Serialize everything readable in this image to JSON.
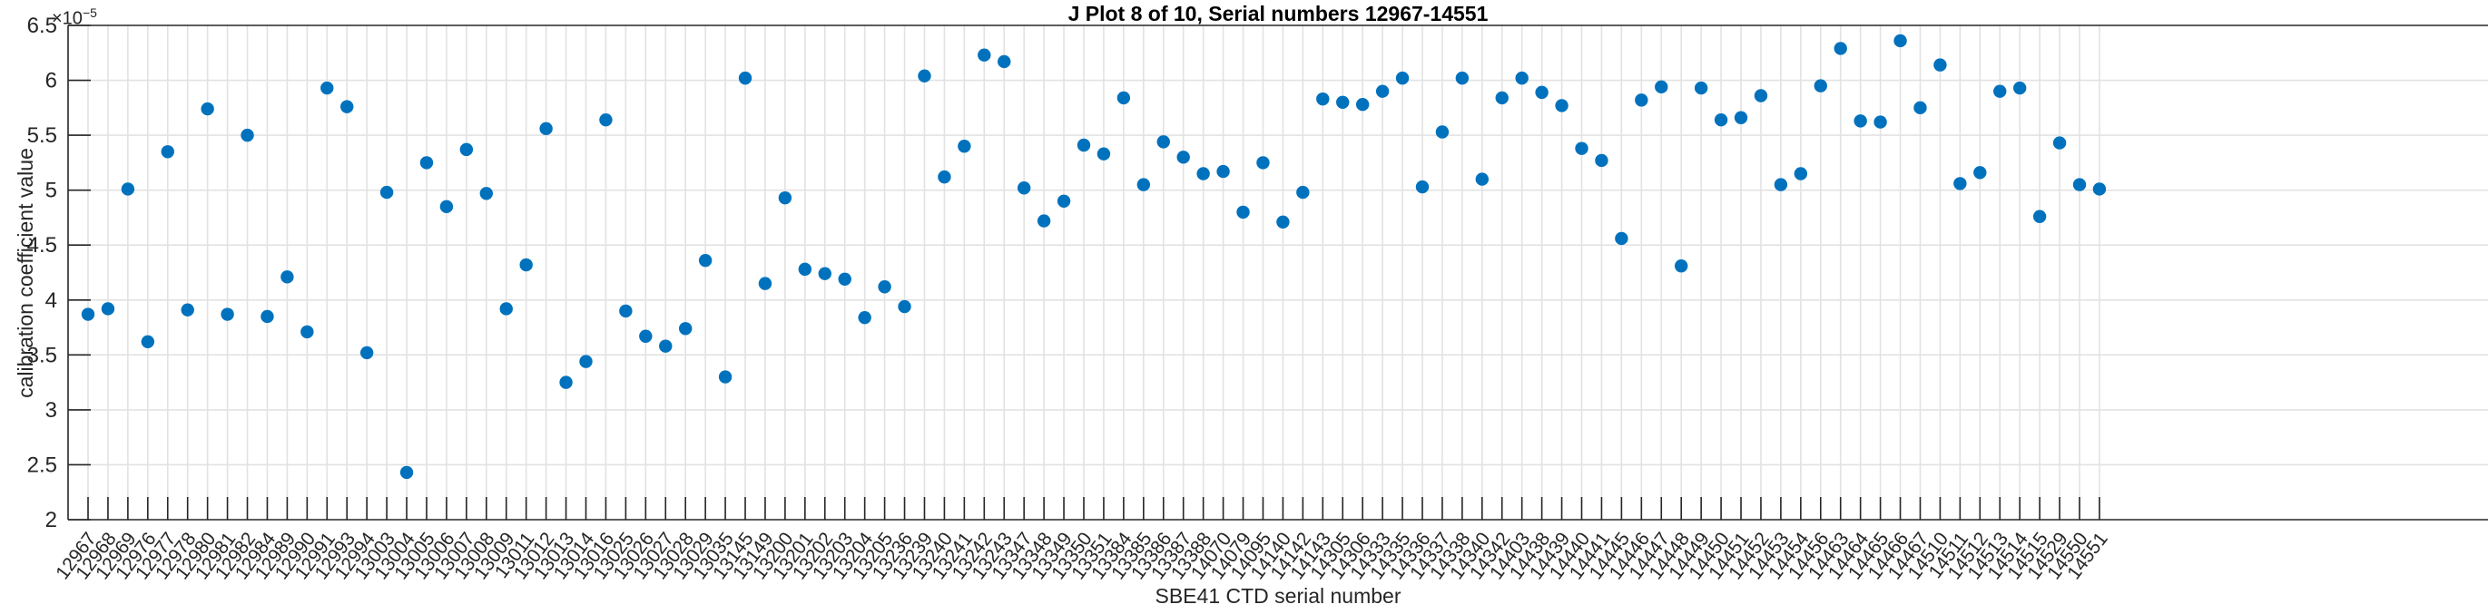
{
  "figure": {
    "title": "J Plot 8 of 10, Serial numbers 12967-14551",
    "xlabel": "SBE41 CTD serial number",
    "ylabel": "calibration coefficient value",
    "y_axis_exponent_base": "×10",
    "y_axis_exponent_power": "−5"
  },
  "style": {
    "marker_color": "#0072BD",
    "grid_color": "#E2E2E2",
    "axis_color": "#262626",
    "tick_label_color": "#262626"
  },
  "chart_data": {
    "type": "scatter",
    "title": "J Plot 8 of 10, Serial numbers 12967-14551",
    "xlabel": "SBE41 CTD serial number",
    "ylabel": "calibration coefficient value",
    "y_multiplier": "1e-5",
    "ylim": [
      2,
      6.5
    ],
    "y_ticks": [
      "2",
      "2.5",
      "3",
      "3.5",
      "4",
      "4.5",
      "5",
      "5.5",
      "6",
      "6.5"
    ],
    "grid": true,
    "legend": false,
    "marker": "filled-circle",
    "categories": [
      "12967",
      "12968",
      "12969",
      "12976",
      "12977",
      "12978",
      "12980",
      "12981",
      "12982",
      "12984",
      "12989",
      "12990",
      "12991",
      "12993",
      "12994",
      "13003",
      "13004",
      "13005",
      "13006",
      "13007",
      "13008",
      "13009",
      "13011",
      "13012",
      "13013",
      "13014",
      "13016",
      "13025",
      "13026",
      "13027",
      "13028",
      "13029",
      "13035",
      "13145",
      "13149",
      "13200",
      "13201",
      "13202",
      "13203",
      "13204",
      "13205",
      "13236",
      "13239",
      "13240",
      "13241",
      "13242",
      "13243",
      "13347",
      "13348",
      "13349",
      "13350",
      "13351",
      "13384",
      "13385",
      "13386",
      "13387",
      "13388",
      "14070",
      "14079",
      "14095",
      "14140",
      "14142",
      "14143",
      "14305",
      "14306",
      "14333",
      "14335",
      "14336",
      "14337",
      "14338",
      "14340",
      "14342",
      "14403",
      "14438",
      "14439",
      "14440",
      "14441",
      "14445",
      "14446",
      "14447",
      "14448",
      "14449",
      "14450",
      "14451",
      "14452",
      "14453",
      "14454",
      "14456",
      "14463",
      "14464",
      "14465",
      "14466",
      "14467",
      "14510",
      "14511",
      "14512",
      "14513",
      "14514",
      "14515",
      "14529",
      "14550",
      "14551"
    ],
    "values": [
      3.87,
      3.92,
      5.01,
      3.62,
      5.35,
      3.91,
      5.74,
      3.87,
      5.5,
      3.85,
      4.21,
      3.71,
      5.93,
      5.76,
      3.52,
      4.98,
      2.43,
      5.25,
      4.85,
      5.37,
      4.97,
      3.92,
      4.32,
      5.56,
      3.25,
      3.44,
      5.64,
      3.9,
      3.67,
      3.58,
      3.74,
      4.36,
      3.3,
      6.02,
      4.15,
      4.93,
      4.28,
      4.24,
      4.19,
      3.84,
      4.12,
      3.94,
      6.04,
      5.12,
      5.4,
      6.23,
      6.17,
      5.02,
      4.72,
      4.9,
      5.41,
      5.33,
      5.84,
      5.05,
      5.44,
      5.3,
      5.15,
      5.17,
      4.8,
      5.25,
      4.71,
      4.98,
      5.83,
      5.8,
      5.78,
      5.9,
      6.02,
      5.03,
      5.53,
      6.02,
      5.1,
      5.84,
      6.02,
      5.89,
      5.77,
      5.38,
      5.27,
      4.56,
      5.82,
      5.94,
      4.31,
      5.93,
      5.64,
      5.66,
      5.86,
      5.05,
      5.15,
      5.95,
      6.29,
      5.63,
      5.62,
      6.36,
      5.75,
      6.14,
      5.06,
      5.16,
      5.9,
      5.93,
      4.76,
      5.43,
      5.05,
      5.01
    ]
  }
}
